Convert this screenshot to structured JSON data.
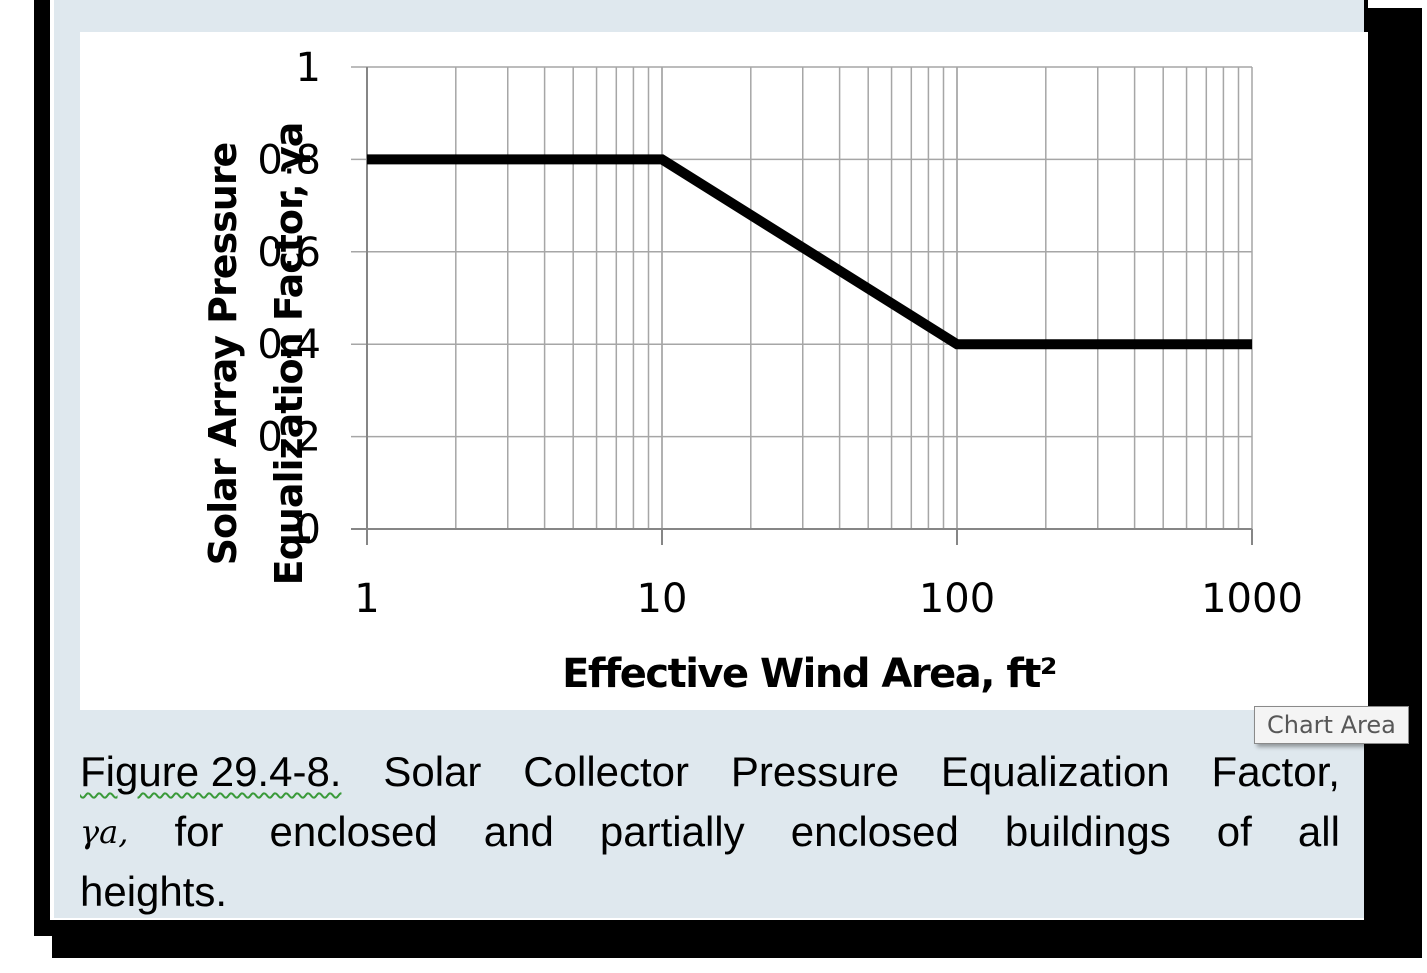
{
  "chart_data": {
    "type": "line",
    "xscale": "log",
    "xlim": [
      1,
      1000
    ],
    "ylim": [
      0,
      1
    ],
    "xticks": [
      "1",
      "10",
      "100",
      "1000"
    ],
    "yticks": [
      "0",
      "0.2",
      "0.4",
      "0.6",
      "0.8",
      "1"
    ],
    "xlabel": "Effective Wind Area, ft²",
    "ylabel_line1": "Solar Array Pressure",
    "ylabel_line2": "Equalization Factor, γa",
    "grid": true,
    "series": [
      {
        "x": [
          1,
          10,
          100,
          1000
        ],
        "y": [
          0.8,
          0.8,
          0.4,
          0.4
        ]
      }
    ],
    "colors": {
      "line": "#000000",
      "grid": "#a6a6a6",
      "axis": "#868686"
    }
  },
  "caption": {
    "figure_number": "Figure 29.4-8.",
    "line1_words": [
      "Solar",
      "Collector",
      "Pressure",
      "Equalization",
      "Factor,"
    ],
    "gamma_symbol": "γa,",
    "line2_words": [
      "for",
      "enclosed",
      "and",
      "partially",
      "enclosed",
      "buildings",
      "of",
      "all"
    ],
    "line3": "heights."
  },
  "tooltip": "Chart Area"
}
